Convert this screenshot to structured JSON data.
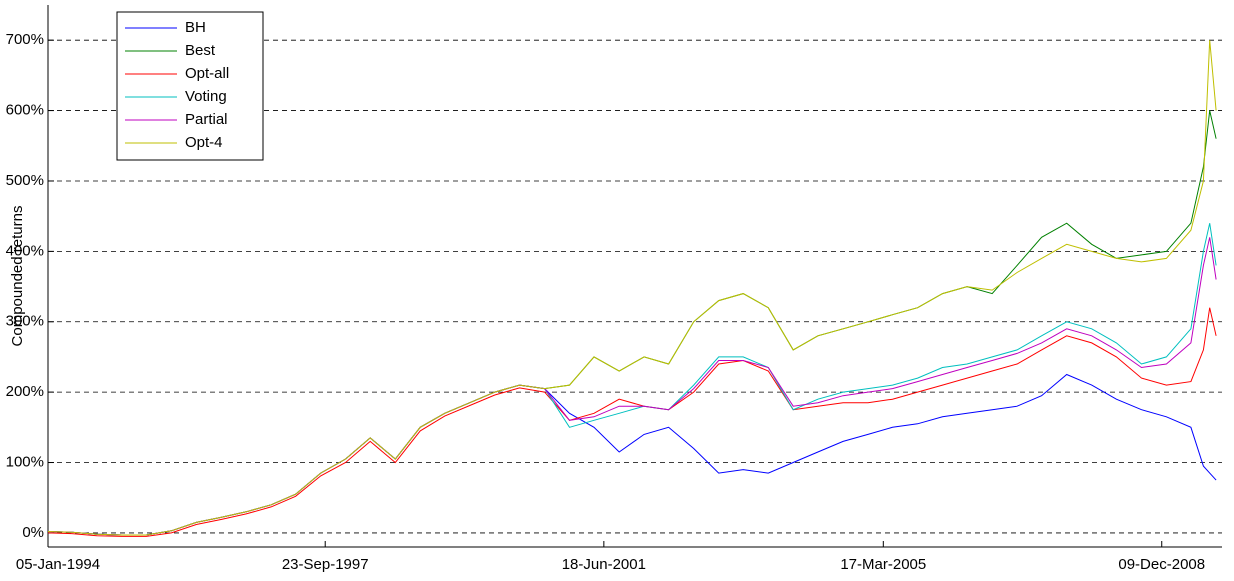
{
  "chart_data": {
    "type": "line",
    "y_label": "Compounded returns",
    "x": [
      "1994-01-05",
      "1994-05-01",
      "1994-09-01",
      "1995-01-01",
      "1995-05-01",
      "1995-09-01",
      "1996-01-01",
      "1996-05-01",
      "1996-09-01",
      "1997-01-01",
      "1997-05-01",
      "1997-09-01",
      "1998-01-01",
      "1998-05-01",
      "1998-09-01",
      "1999-01-01",
      "1999-05-01",
      "1999-09-01",
      "2000-01-01",
      "2000-05-01",
      "2000-09-01",
      "2001-01-01",
      "2001-05-01",
      "2001-09-01",
      "2002-01-01",
      "2002-05-01",
      "2002-09-01",
      "2003-01-01",
      "2003-05-01",
      "2003-09-01",
      "2004-01-01",
      "2004-05-01",
      "2004-09-01",
      "2005-01-01",
      "2005-05-01",
      "2005-09-01",
      "2006-01-01",
      "2006-05-01",
      "2006-09-01",
      "2007-01-01",
      "2007-05-01",
      "2007-09-01",
      "2008-01-01",
      "2008-05-01",
      "2008-09-01",
      "2009-01-01",
      "2009-05-01",
      "2009-07-01",
      "2009-08-01",
      "2009-09-01"
    ],
    "series": [
      {
        "name": "BH",
        "color": "#0000ff",
        "values": [
          2,
          1,
          -2,
          -3,
          -3,
          3,
          15,
          22,
          30,
          40,
          55,
          85,
          105,
          135,
          105,
          150,
          170,
          185,
          200,
          210,
          205,
          170,
          150,
          115,
          140,
          150,
          120,
          85,
          90,
          85,
          100,
          115,
          130,
          140,
          150,
          155,
          165,
          170,
          175,
          180,
          195,
          225,
          210,
          190,
          175,
          165,
          150,
          95,
          85,
          75
        ]
      },
      {
        "name": "Best",
        "color": "#008000",
        "values": [
          2,
          1,
          -2,
          -3,
          -3,
          3,
          15,
          22,
          30,
          40,
          55,
          85,
          105,
          135,
          105,
          150,
          170,
          185,
          200,
          210,
          205,
          210,
          250,
          230,
          250,
          240,
          300,
          330,
          340,
          320,
          260,
          280,
          290,
          300,
          310,
          320,
          340,
          350,
          340,
          380,
          420,
          440,
          410,
          390,
          395,
          400,
          440,
          520,
          600,
          560
        ]
      },
      {
        "name": "Opt-all",
        "color": "#ff0000",
        "values": [
          0,
          -1,
          -4,
          -5,
          -5,
          0,
          12,
          19,
          27,
          37,
          52,
          81,
          100,
          130,
          100,
          145,
          166,
          181,
          196,
          206,
          200,
          160,
          170,
          190,
          180,
          175,
          200,
          240,
          245,
          230,
          175,
          180,
          185,
          185,
          190,
          200,
          210,
          220,
          230,
          240,
          260,
          280,
          270,
          250,
          220,
          210,
          215,
          260,
          320,
          280
        ]
      },
      {
        "name": "Voting",
        "color": "#00bfbf",
        "values": [
          2,
          1,
          -2,
          -3,
          -3,
          3,
          15,
          22,
          30,
          40,
          55,
          85,
          105,
          135,
          105,
          150,
          170,
          185,
          200,
          210,
          205,
          150,
          160,
          170,
          180,
          175,
          210,
          250,
          250,
          235,
          175,
          190,
          200,
          205,
          210,
          220,
          235,
          240,
          250,
          260,
          280,
          300,
          290,
          270,
          240,
          250,
          290,
          400,
          440,
          380
        ]
      },
      {
        "name": "Partial",
        "color": "#bf00bf",
        "values": [
          2,
          1,
          -2,
          -3,
          -3,
          3,
          15,
          22,
          30,
          40,
          55,
          85,
          105,
          135,
          105,
          150,
          170,
          185,
          200,
          210,
          205,
          160,
          165,
          180,
          180,
          175,
          205,
          245,
          245,
          235,
          180,
          185,
          195,
          200,
          205,
          215,
          225,
          235,
          245,
          255,
          270,
          290,
          280,
          260,
          235,
          240,
          270,
          380,
          420,
          360
        ]
      },
      {
        "name": "Opt-4",
        "color": "#bfbf00",
        "values": [
          2,
          1,
          -2,
          -3,
          -3,
          3,
          15,
          22,
          30,
          40,
          55,
          85,
          105,
          135,
          105,
          150,
          170,
          185,
          200,
          210,
          205,
          210,
          250,
          230,
          250,
          240,
          300,
          330,
          340,
          320,
          260,
          280,
          290,
          300,
          310,
          320,
          340,
          350,
          345,
          370,
          390,
          410,
          400,
          390,
          385,
          390,
          430,
          500,
          700,
          600
        ]
      }
    ],
    "xlim": [
      "1994-01-05",
      "2009-09-30"
    ],
    "xticks": [
      {
        "value": "1994-01-05",
        "label": "05-Jan-1994"
      },
      {
        "value": "1997-09-23",
        "label": "23-Sep-1997"
      },
      {
        "value": "2001-06-18",
        "label": "18-Jun-2001"
      },
      {
        "value": "2005-03-17",
        "label": "17-Mar-2005"
      },
      {
        "value": "2008-12-09",
        "label": "09-Dec-2008"
      }
    ],
    "ylim": [
      -20,
      750
    ],
    "yticks": [
      {
        "value": 0,
        "label": "0%"
      },
      {
        "value": 100,
        "label": "100%"
      },
      {
        "value": 200,
        "label": "200%"
      },
      {
        "value": 300,
        "label": "300%"
      },
      {
        "value": 400,
        "label": "400%"
      },
      {
        "value": 500,
        "label": "500%"
      },
      {
        "value": 600,
        "label": "600%"
      },
      {
        "value": 700,
        "label": "700%"
      }
    ],
    "grid": true,
    "legend": "upper-left"
  }
}
